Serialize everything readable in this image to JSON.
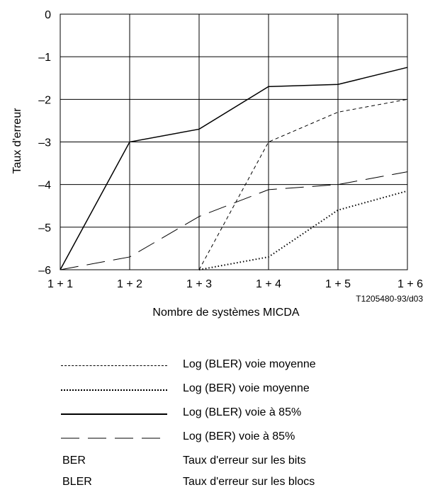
{
  "chart_data": {
    "type": "line",
    "title": "",
    "xlabel": "Nombre de systèmes MICDA",
    "ylabel": "Taux d'erreur",
    "categories": [
      "1 + 1",
      "1 + 2",
      "1 + 3",
      "1 + 4",
      "1 + 5",
      "1 + 6"
    ],
    "y_ticks": [
      "0",
      "–1",
      "–2",
      "–3",
      "–4",
      "–5",
      "–6"
    ],
    "ylim": [
      -6,
      0
    ],
    "grid": true,
    "figure_id": "T1205480-93/d03",
    "series": [
      {
        "name": "Log (BLER) voie moyenne",
        "style": "short-dash",
        "x": [
          2,
          3,
          4,
          5
        ],
        "values": [
          -6,
          -3,
          -2.3,
          -2
        ]
      },
      {
        "name": "Log (BER) voie moyenne",
        "style": "dotted",
        "x": [
          2,
          3,
          4,
          5
        ],
        "values": [
          -6,
          -5.7,
          -4.6,
          -4.15
        ]
      },
      {
        "name": "Log (BLER) voie à 85%",
        "style": "solid",
        "x": [
          0,
          1,
          2,
          3,
          4,
          5
        ],
        "values": [
          -6,
          -3,
          -2.7,
          -1.7,
          -1.65,
          -1.25
        ]
      },
      {
        "name": "Log (BER) voie à 85%",
        "style": "long-dash",
        "x": [
          0,
          1,
          2,
          3,
          4,
          5
        ],
        "values": [
          -6,
          -5.7,
          -4.75,
          -4.12,
          -4,
          -3.7
        ]
      }
    ],
    "abbreviations": [
      {
        "abbr": "BER",
        "meaning": "Taux d'erreur sur les bits"
      },
      {
        "abbr": "BLER",
        "meaning": "Taux d'erreur sur les blocs"
      }
    ]
  }
}
